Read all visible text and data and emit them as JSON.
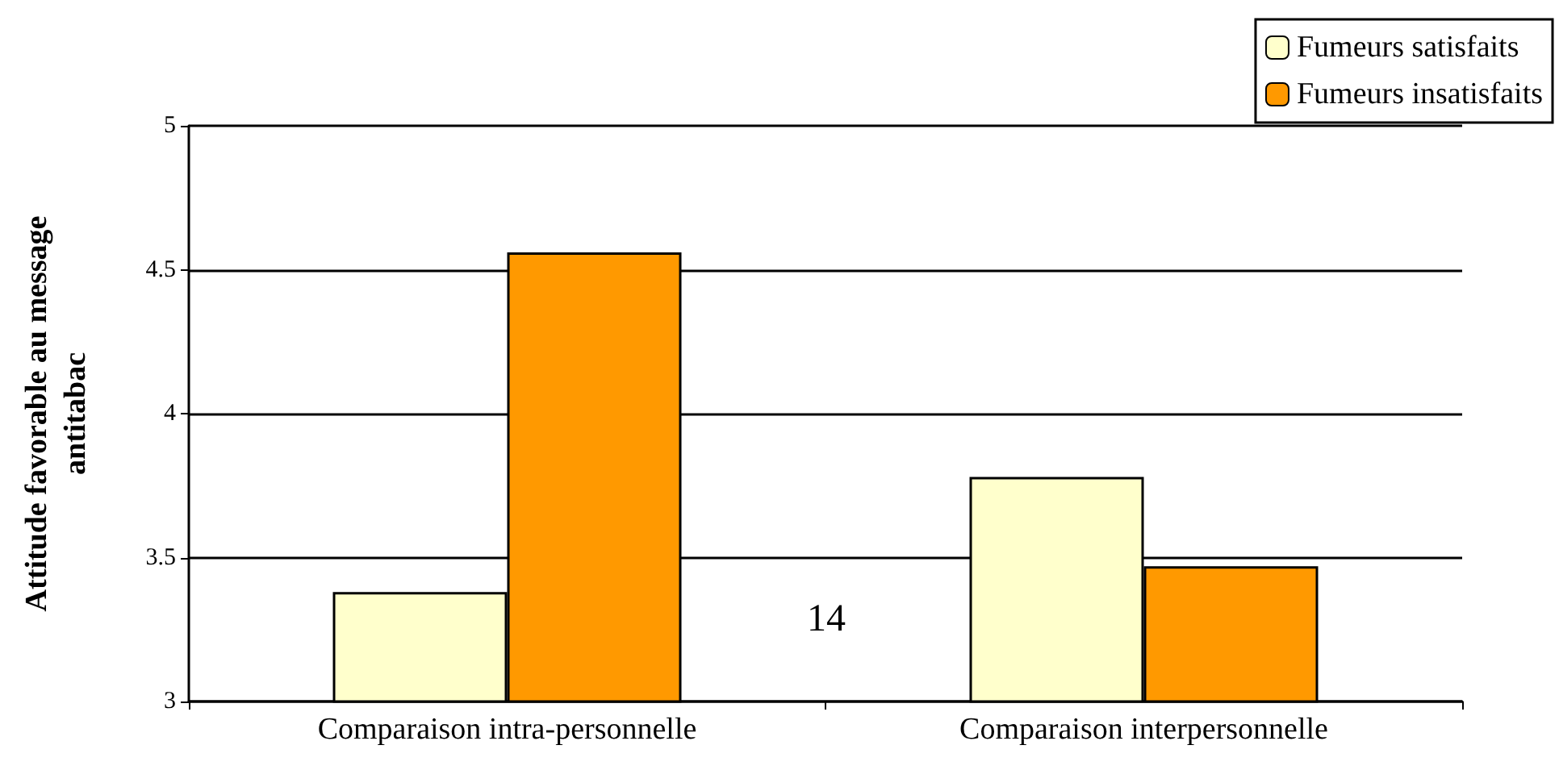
{
  "chart_data": {
    "type": "bar",
    "ylabel": "Attitude favorable au message\nantitabac",
    "categories": [
      "Comparaison intra-personnelle",
      "Comparaison interpersonnelle"
    ],
    "series": [
      {
        "name": "Fumeurs satisfaits",
        "color": "#ffffcc",
        "values": [
          3.38,
          3.78
        ]
      },
      {
        "name": "Fumeurs insatisfaits",
        "color": "#ff9900",
        "values": [
          4.56,
          3.47
        ]
      }
    ],
    "ylim": [
      3,
      5
    ],
    "yticks": [
      3,
      3.5,
      4,
      4.5,
      5
    ],
    "grid": "y",
    "legend": "top right",
    "annotations": [
      "14"
    ]
  }
}
